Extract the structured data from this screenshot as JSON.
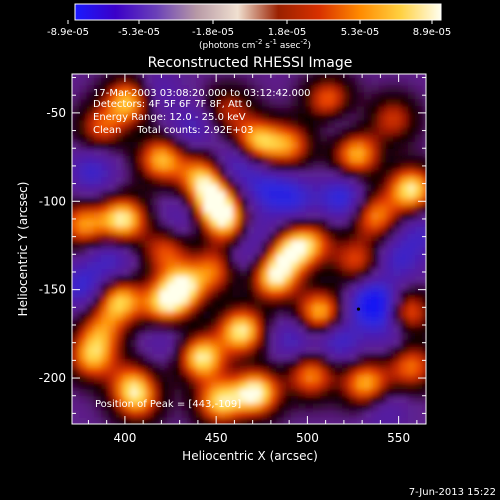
{
  "colorbar": {
    "tick_labels": [
      "-8.9e-05",
      "-5.3e-05",
      "-1.8e-05",
      "1.8e-05",
      "5.3e-05",
      "8.9e-05"
    ],
    "units_main": "(photons cm",
    "units_sup1": "-2",
    "units_mid": " s",
    "units_sup2": "-1",
    "units_tail": " asec",
    "units_sup3": "-2",
    "units_close": ")",
    "colors": [
      "#1a1aff",
      "#3b00c8",
      "#6a40b8",
      "#b89aa6",
      "#f0e0d0",
      "#9a2000",
      "#d83000",
      "#ff8a00",
      "#ffd040",
      "#fffff0"
    ]
  },
  "chart_data": {
    "type": "heatmap",
    "title": "Reconstructed RHESSI Image",
    "xlabel": "Heliocentric X (arcsec)",
    "ylabel": "Heliocentric Y (arcsec)",
    "xlim": [
      371,
      565
    ],
    "ylim": [
      -226,
      -28
    ],
    "x_ticks": [
      400,
      450,
      500,
      550
    ],
    "x_tick_labels": [
      "400",
      "450",
      "500",
      "550"
    ],
    "y_ticks": [
      -50,
      -100,
      -150,
      -200
    ],
    "y_tick_labels": [
      "-50",
      "-100",
      "-150",
      "-200"
    ],
    "grid": false,
    "annotations": {
      "time": "17-Mar-2003 03:08:20.000 to 03:12:42.000",
      "detectors": "Detectors: 4F 5F 6F 7F 8F, Att 0",
      "energy": "Energy Range: 12.0 - 25.0 keV",
      "clean": "Clean     Total counts: 2.92E+03",
      "peak": "Position of Peak = [443,-109]"
    },
    "blobs": [
      {
        "x": 400,
        "y": -45,
        "v": 0.85
      },
      {
        "x": 385,
        "y": -60,
        "v": 0.55
      },
      {
        "x": 418,
        "y": -78,
        "v": 0.8
      },
      {
        "x": 375,
        "y": -115,
        "v": 0.7
      },
      {
        "x": 397,
        "y": -112,
        "v": 0.95
      },
      {
        "x": 420,
        "y": -160,
        "v": 0.8
      },
      {
        "x": 395,
        "y": -158,
        "v": 0.85
      },
      {
        "x": 380,
        "y": -190,
        "v": 0.75
      },
      {
        "x": 402,
        "y": -205,
        "v": 0.6
      },
      {
        "x": 447,
        "y": -103,
        "v": 1.0
      },
      {
        "x": 440,
        "y": -88,
        "v": 0.75
      },
      {
        "x": 455,
        "y": -115,
        "v": 0.7
      },
      {
        "x": 470,
        "y": -68,
        "v": 0.85
      },
      {
        "x": 488,
        "y": -70,
        "v": 0.65
      },
      {
        "x": 510,
        "y": -45,
        "v": 0.7
      },
      {
        "x": 525,
        "y": -75,
        "v": 0.8
      },
      {
        "x": 535,
        "y": -110,
        "v": 0.7
      },
      {
        "x": 555,
        "y": -95,
        "v": 0.95
      },
      {
        "x": 552,
        "y": -165,
        "v": 0.75
      },
      {
        "x": 555,
        "y": -195,
        "v": 0.65
      },
      {
        "x": 530,
        "y": -205,
        "v": 0.8
      },
      {
        "x": 505,
        "y": -165,
        "v": 0.85
      },
      {
        "x": 500,
        "y": -125,
        "v": 0.6
      },
      {
        "x": 480,
        "y": -145,
        "v": 0.9
      },
      {
        "x": 488,
        "y": -130,
        "v": 0.75
      },
      {
        "x": 462,
        "y": -175,
        "v": 0.95
      },
      {
        "x": 440,
        "y": -190,
        "v": 0.95
      },
      {
        "x": 450,
        "y": -215,
        "v": 0.85
      },
      {
        "x": 470,
        "y": -210,
        "v": 1.0
      },
      {
        "x": 500,
        "y": -200,
        "v": 0.7
      },
      {
        "x": 430,
        "y": -150,
        "v": 0.85
      },
      {
        "x": 448,
        "y": -140,
        "v": 0.65
      },
      {
        "x": 420,
        "y": -130,
        "v": 0.55
      },
      {
        "x": 525,
        "y": -135,
        "v": 0.55
      },
      {
        "x": 545,
        "y": -55,
        "v": 0.5
      },
      {
        "x": 455,
        "y": -50,
        "v": 0.45
      },
      {
        "x": 405,
        "y": -215,
        "v": 0.55
      },
      {
        "x": 385,
        "y": -175,
        "v": 0.55
      },
      {
        "x": 430,
        "y": -110,
        "v": -0.3
      },
      {
        "x": 460,
        "y": -80,
        "v": -0.5
      },
      {
        "x": 475,
        "y": -95,
        "v": -0.45
      },
      {
        "x": 490,
        "y": -100,
        "v": -0.5
      },
      {
        "x": 470,
        "y": -120,
        "v": -0.35
      },
      {
        "x": 517,
        "y": -100,
        "v": -0.6
      },
      {
        "x": 535,
        "y": -160,
        "v": -1.0
      },
      {
        "x": 515,
        "y": -180,
        "v": -0.5
      },
      {
        "x": 545,
        "y": -175,
        "v": -0.35
      },
      {
        "x": 375,
        "y": -150,
        "v": -0.5
      },
      {
        "x": 380,
        "y": -85,
        "v": -0.45
      },
      {
        "x": 390,
        "y": -135,
        "v": -0.4
      },
      {
        "x": 415,
        "y": -40,
        "v": -0.3
      },
      {
        "x": 460,
        "y": -135,
        "v": -0.3
      },
      {
        "x": 490,
        "y": -180,
        "v": -0.4
      },
      {
        "x": 420,
        "y": -180,
        "v": -0.25
      },
      {
        "x": 515,
        "y": -55,
        "v": -0.25
      },
      {
        "x": 548,
        "y": -135,
        "v": -0.4
      },
      {
        "x": 560,
        "y": -120,
        "v": -0.35
      },
      {
        "x": 435,
        "y": -60,
        "v": -0.35
      },
      {
        "x": 540,
        "y": -220,
        "v": -0.25
      }
    ]
  },
  "footer": {
    "timestamp": "7-Jun-2013 15:22"
  }
}
